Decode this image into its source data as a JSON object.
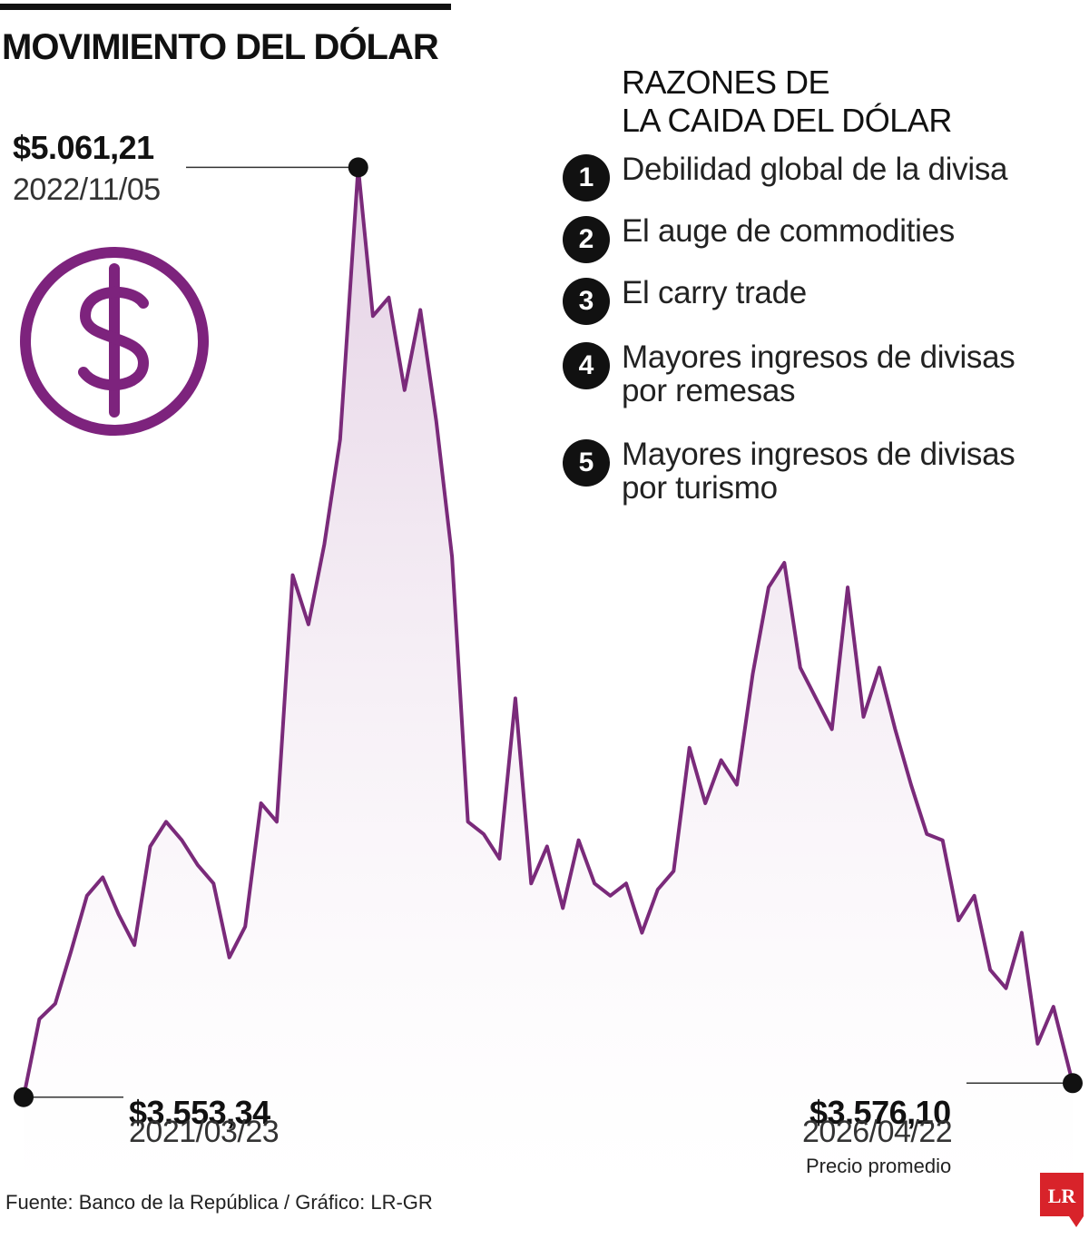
{
  "title": "MOVIMIENTO DEL DÓLAR",
  "reasons_title": [
    "RAZONES DE",
    "LA CAIDA DEL DÓLAR"
  ],
  "reasons": [
    {
      "num": "1",
      "lines": [
        "Debilidad global de la divisa"
      ]
    },
    {
      "num": "2",
      "lines": [
        "El auge de commodities"
      ]
    },
    {
      "num": "3",
      "lines": [
        "El carry trade"
      ]
    },
    {
      "num": "4",
      "lines": [
        "Mayores ingresos de divisas",
        "por remesas"
      ]
    },
    {
      "num": "5",
      "lines": [
        "Mayores ingresos de divisas",
        "por turismo"
      ]
    }
  ],
  "labels": {
    "max": {
      "value": "$5.061,21",
      "date": "2022/11/05"
    },
    "start": {
      "value": "$3.553,34",
      "date": "2021/03/23"
    },
    "end": {
      "value": "$3.576,10",
      "date": "2026/04/22"
    }
  },
  "note": "Precio promedio",
  "source": "Fuente: Banco de la República / Gráfico: LR-GR",
  "logo_text": "LR",
  "icon": "dollar-circle-icon",
  "colors": {
    "line": "#7a2a7a",
    "fill": "#e9d8e9",
    "icon": "#7d237d",
    "logo": "#d8232a",
    "text": "#111111"
  },
  "chart_data": {
    "type": "area",
    "series": [
      {
        "x": [
          "2021/03/23",
          "2021/04/20",
          "2021/05/18",
          "2021/06/15",
          "2021/07/13",
          "2021/08/10",
          "2021/09/07",
          "2021/10/05",
          "2021/11/02",
          "2021/11/30",
          "2021/12/28",
          "2022/01/25",
          "2022/02/22",
          "2022/03/22",
          "2022/04/19",
          "2022/05/17",
          "2022/06/14",
          "2022/07/12",
          "2022/08/09",
          "2022/09/06",
          "2022/10/04",
          "2022/11/05",
          "2022/12/01",
          "2022/12/29",
          "2023/01/26",
          "2023/02/23",
          "2023/03/23",
          "2023/04/20",
          "2023/05/18",
          "2023/06/15",
          "2023/07/13",
          "2023/08/10",
          "2023/09/07",
          "2023/10/05",
          "2023/11/02",
          "2023/11/30",
          "2023/12/28",
          "2024/01/25",
          "2024/02/22",
          "2024/03/21",
          "2024/04/18",
          "2024/05/16",
          "2024/06/13",
          "2024/07/11",
          "2024/08/08",
          "2024/09/05",
          "2024/10/03",
          "2024/10/31",
          "2024/11/28",
          "2024/12/26",
          "2025/01/23",
          "2025/02/20",
          "2025/03/20",
          "2025/04/17",
          "2025/05/15",
          "2025/06/12",
          "2025/07/10",
          "2025/08/07",
          "2025/09/04",
          "2025/10/02",
          "2025/10/30",
          "2025/11/27",
          "2025/12/25",
          "2026/01/22",
          "2026/02/19",
          "2026/03/19",
          "2026/04/22"
        ],
        "y": [
          3553.34,
          3680,
          3705,
          3790,
          3880,
          3910,
          3850,
          3800,
          3960,
          4000,
          3970,
          3930,
          3900,
          3780,
          3830,
          4030,
          4000,
          4400,
          4320,
          4450,
          4620,
          5061.21,
          4820,
          4850,
          4700,
          4830,
          4650,
          4430,
          4000,
          3980,
          3940,
          4200,
          3900,
          3960,
          3860,
          3970,
          3900,
          3880,
          3900,
          3820,
          3890,
          3920,
          4120,
          4030,
          4100,
          4060,
          4240,
          4380,
          4420,
          4250,
          4200,
          4150,
          4380,
          4170,
          4250,
          4150,
          4060,
          3980,
          3970,
          3840,
          3880,
          3760,
          3730,
          3820,
          3640,
          3700,
          3576.1
        ]
      }
    ],
    "ylim": [
      3500,
      5100
    ],
    "points": [
      {
        "x": "2021/03/23",
        "y": 3553.34
      },
      {
        "x": "2022/11/05",
        "y": 5061.21
      },
      {
        "x": "2026/04/22",
        "y": 3576.1
      }
    ],
    "grid": false,
    "legend": "none"
  }
}
